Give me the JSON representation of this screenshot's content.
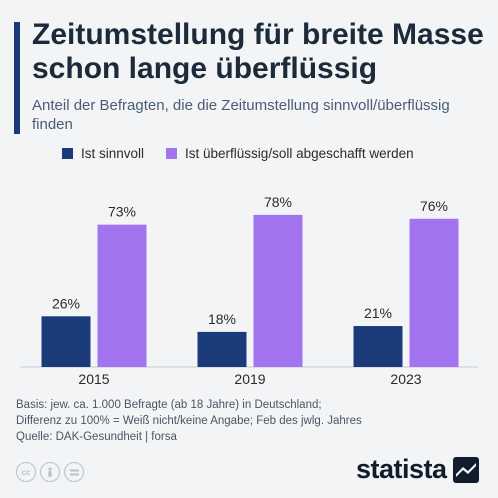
{
  "header": {
    "title": "Zeitumstellung für breite Masse schon lange überflüssig",
    "subtitle": "Anteil der Befragten, die die Zeitumstellung sinnvoll/überflüssig finden"
  },
  "colors": {
    "sinnvoll": "#1b3a7a",
    "ueberfluessig": "#a374f0",
    "accent": "#1b3a73"
  },
  "chart_data": {
    "type": "bar",
    "title": "Zeitumstellung für breite Masse schon lange überflüssig",
    "subtitle": "Anteil der Befragten, die die Zeitumstellung sinnvoll/überflüssig finden",
    "categories": [
      "2015",
      "2019",
      "2023"
    ],
    "series": [
      {
        "name": "Ist sinnvoll",
        "values": [
          26,
          18,
          21
        ],
        "labels": [
          "26%",
          "18%",
          "21%"
        ]
      },
      {
        "name": "Ist überflüssig/soll abgeschafft werden",
        "values": [
          73,
          78,
          76
        ],
        "labels": [
          "73%",
          "78%",
          "76%"
        ]
      }
    ],
    "xlabel": "",
    "ylabel": "",
    "ylim": [
      0,
      100
    ],
    "grid": false,
    "legend": "top"
  },
  "footer": {
    "lines": [
      "Basis: jew. ca. 1.000 Befragte (ab 18 Jahre) in Deutschland;",
      "Differenz zu 100% = Weiß nicht/keine Angabe; Feb des jwlg. Jahres",
      "Quelle: DAK-Gesundheit | forsa"
    ]
  },
  "license_icons": [
    "cc-icon",
    "person-icon",
    "equals-icon"
  ],
  "brand": {
    "name": "statista"
  }
}
